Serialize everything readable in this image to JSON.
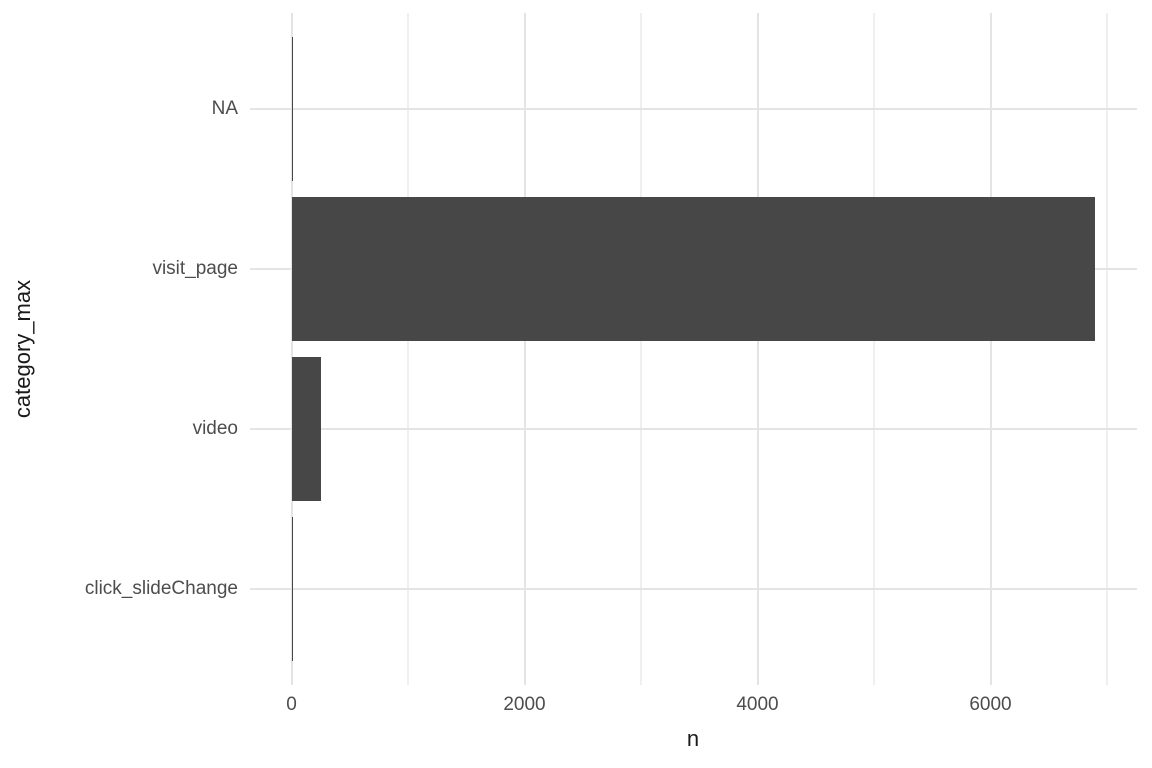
{
  "chart_data": {
    "type": "bar",
    "orientation": "horizontal",
    "xlabel": "n",
    "ylabel": "category_max",
    "categories_top_to_bottom": [
      "NA",
      "visit_page",
      "video",
      "click_slideChange"
    ],
    "values": [
      10,
      6900,
      250,
      15
    ],
    "x_major_ticks": [
      0,
      2000,
      4000,
      6000
    ],
    "x_tick_labels": [
      "0",
      "2000",
      "4000",
      "6000"
    ],
    "x_minor_ticks": [
      1000,
      3000,
      5000,
      7000
    ],
    "xlim_data": [
      0,
      7260
    ],
    "grid": "major and minor, no axis lines, no tick marks (theme_minimal)",
    "legend": "none",
    "colors": {
      "bar_fill": "#474747",
      "grid_major": "#e4e4e4",
      "grid_minor": "#efefef",
      "tick_label": "#4d4d4d",
      "axis_title": "#1a1a1a",
      "background": "#ffffff"
    }
  }
}
